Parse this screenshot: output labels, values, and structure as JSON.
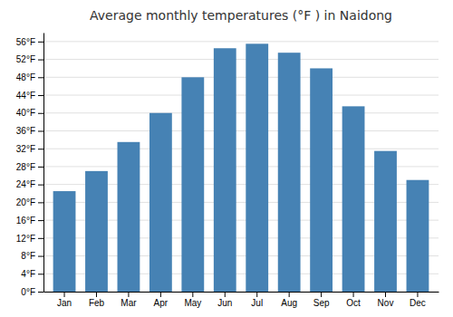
{
  "chart_data": {
    "type": "bar",
    "title": "Average monthly temperatures (°F ) in Naidong",
    "categories": [
      "Jan",
      "Feb",
      "Mar",
      "Apr",
      "May",
      "Jun",
      "Jul",
      "Aug",
      "Sep",
      "Oct",
      "Nov",
      "Dec"
    ],
    "values": [
      22.5,
      27.0,
      33.5,
      40.0,
      48.0,
      54.5,
      55.5,
      53.5,
      50.0,
      41.5,
      31.5,
      25.0
    ],
    "ylim": [
      0,
      58
    ],
    "yticks": [
      {
        "value": 0,
        "label": "0°F"
      },
      {
        "value": 4,
        "label": "4°F"
      },
      {
        "value": 8,
        "label": "8°F"
      },
      {
        "value": 12,
        "label": "12°F"
      },
      {
        "value": 16,
        "label": "16°F"
      },
      {
        "value": 20,
        "label": "20°F"
      },
      {
        "value": 24,
        "label": "24°F"
      },
      {
        "value": 28,
        "label": "28°F"
      },
      {
        "value": 32,
        "label": "32°F"
      },
      {
        "value": 36,
        "label": "36°F"
      },
      {
        "value": 40,
        "label": "40°F"
      },
      {
        "value": 44,
        "label": "44°F"
      },
      {
        "value": 48,
        "label": "48°F"
      },
      {
        "value": 52,
        "label": "52°F"
      },
      {
        "value": 56,
        "label": "56°F"
      }
    ],
    "grid": true
  }
}
